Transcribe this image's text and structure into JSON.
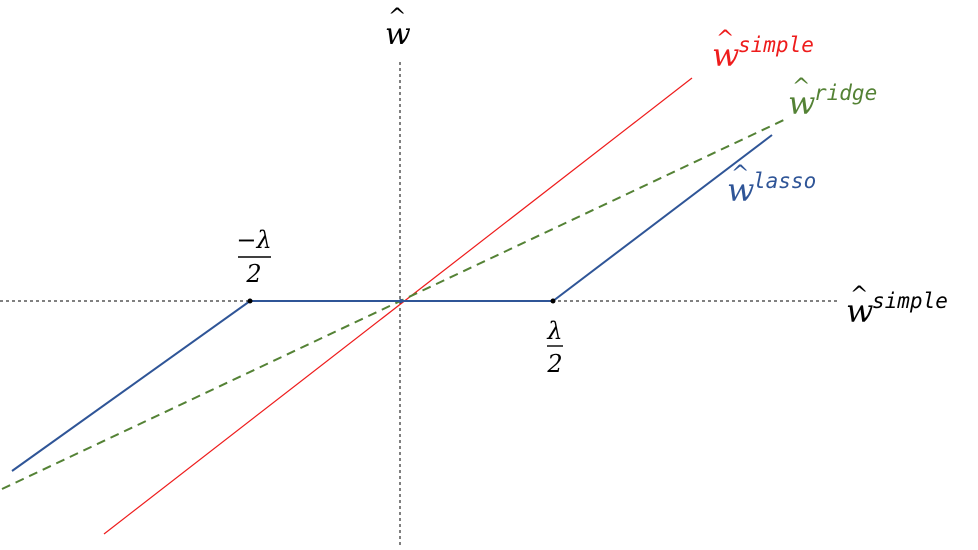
{
  "diagram": {
    "w_base": "w",
    "hat": "^",
    "y_axis_label": "ŵ",
    "x_axis_label_sup": "simple",
    "simple_sup": "simple",
    "ridge_sup": "ridge",
    "lasso_sup": "lasso",
    "neg_threshold_num": "−λ",
    "neg_threshold_den": "2",
    "pos_threshold_num": "λ",
    "pos_threshold_den": "2"
  },
  "colors": {
    "simple": "#ee1c1c",
    "ridge": "#548235",
    "lasso": "#2f5597",
    "axis": "#000000"
  }
}
